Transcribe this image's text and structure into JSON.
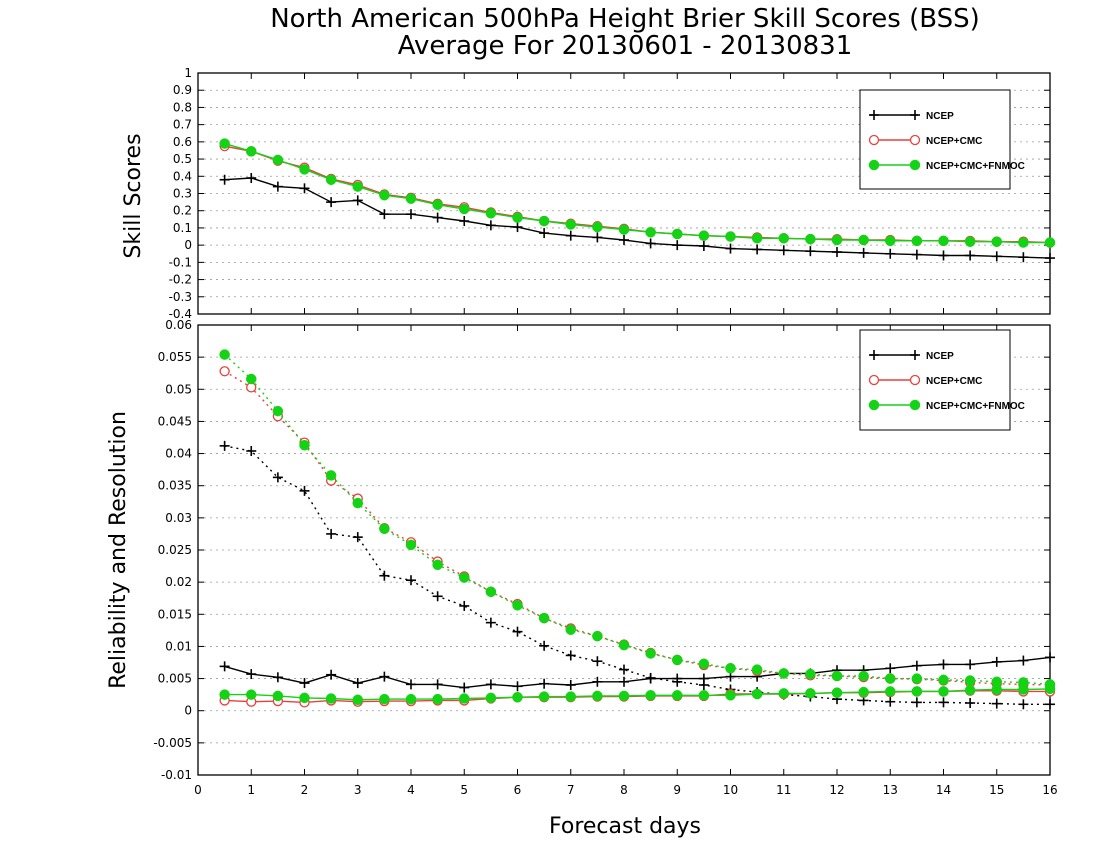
{
  "page": {
    "title_line1": "North American 500hPa Height Brier Skill Scores (BSS)",
    "title_line2": "Average For 20130601 - 20130831"
  },
  "colors": {
    "ncep": "#000000",
    "ncep_cmc": "#e8413c",
    "ncep_cmc_fnmoc": "#14d214",
    "grid": "#9a9a9a"
  },
  "chart_data": [
    {
      "id": "bss",
      "type": "line",
      "ylabel": "Skill Scores",
      "xlabel": "",
      "xlim": [
        0,
        16
      ],
      "ylim": [
        -0.4,
        1
      ],
      "x_ticks": [
        0,
        1,
        2,
        3,
        4,
        5,
        6,
        7,
        8,
        9,
        10,
        11,
        12,
        13,
        14,
        15,
        16
      ],
      "y_ticks": [
        -0.4,
        -0.3,
        -0.2,
        -0.1,
        0,
        0.1,
        0.2,
        0.3,
        0.4,
        0.5,
        0.6,
        0.7,
        0.8,
        0.9,
        1
      ],
      "y_tick_labels": [
        "-0.4",
        "-0.3",
        "-0.2",
        "-0.1",
        "0",
        "0.1",
        "0.2",
        "0.3",
        "0.4",
        "0.5",
        "0.6",
        "0.7",
        "0.8",
        "0.9",
        "1"
      ],
      "grid": true,
      "legend_position": "top-right",
      "x": [
        0.5,
        1,
        1.5,
        2,
        2.5,
        3,
        3.5,
        4,
        4.5,
        5,
        5.5,
        6,
        6.5,
        7,
        7.5,
        8,
        8.5,
        9,
        9.5,
        10,
        10.5,
        11,
        11.5,
        12,
        12.5,
        13,
        13.5,
        14,
        14.5,
        15,
        15.5,
        16
      ],
      "series": [
        {
          "name": "NCEP",
          "key": "ncep",
          "marker": "plus",
          "dash": "solid",
          "values": [
            0.38,
            0.39,
            0.34,
            0.33,
            0.25,
            0.26,
            0.18,
            0.18,
            0.16,
            0.14,
            0.115,
            0.105,
            0.07,
            0.055,
            0.045,
            0.03,
            0.01,
            0.0,
            -0.005,
            -0.02,
            -0.025,
            -0.03,
            -0.035,
            -0.04,
            -0.045,
            -0.05,
            -0.055,
            -0.06,
            -0.06,
            -0.065,
            -0.07,
            -0.075
          ]
        },
        {
          "name": "NCEP+CMC",
          "key": "ncep_cmc",
          "marker": "open-circle",
          "dash": "solid",
          "values": [
            0.575,
            0.545,
            0.49,
            0.45,
            0.385,
            0.35,
            0.295,
            0.275,
            0.24,
            0.22,
            0.19,
            0.165,
            0.14,
            0.125,
            0.11,
            0.095,
            0.075,
            0.065,
            0.055,
            0.05,
            0.045,
            0.04,
            0.035,
            0.035,
            0.03,
            0.03,
            0.025,
            0.025,
            0.025,
            0.02,
            0.02,
            0.015
          ]
        },
        {
          "name": "NCEP+CMC+FNMOC",
          "key": "ncep_cmc_fnmoc",
          "marker": "filled-circle",
          "dash": "solid",
          "values": [
            0.59,
            0.545,
            0.495,
            0.44,
            0.38,
            0.34,
            0.29,
            0.27,
            0.235,
            0.21,
            0.185,
            0.16,
            0.14,
            0.12,
            0.105,
            0.09,
            0.075,
            0.065,
            0.055,
            0.05,
            0.04,
            0.04,
            0.035,
            0.03,
            0.03,
            0.025,
            0.025,
            0.025,
            0.02,
            0.02,
            0.015,
            0.015
          ]
        }
      ]
    },
    {
      "id": "relres",
      "type": "line",
      "ylabel": "Reliability and Resolution",
      "xlabel": "Forecast days",
      "xlim": [
        0,
        16
      ],
      "ylim": [
        -0.01,
        0.06
      ],
      "x_ticks": [
        0,
        1,
        2,
        3,
        4,
        5,
        6,
        7,
        8,
        9,
        10,
        11,
        12,
        13,
        14,
        15,
        16
      ],
      "y_ticks": [
        -0.01,
        -0.005,
        0,
        0.005,
        0.01,
        0.015,
        0.02,
        0.025,
        0.03,
        0.035,
        0.04,
        0.045,
        0.05,
        0.055,
        0.06
      ],
      "y_tick_labels": [
        "-0.01",
        "-0.005",
        "0",
        "0.005",
        "0.01",
        "0.015",
        "0.02",
        "0.025",
        "0.03",
        "0.035",
        "0.04",
        "0.045",
        "0.05",
        "0.055",
        "0.06"
      ],
      "grid": true,
      "legend_position": "top-right",
      "x": [
        0.5,
        1,
        1.5,
        2,
        2.5,
        3,
        3.5,
        4,
        4.5,
        5,
        5.5,
        6,
        6.5,
        7,
        7.5,
        8,
        8.5,
        9,
        9.5,
        10,
        10.5,
        11,
        11.5,
        12,
        12.5,
        13,
        13.5,
        14,
        14.5,
        15,
        15.5,
        16
      ],
      "series": [
        {
          "name": "NCEP",
          "key": "ncep",
          "marker": "plus",
          "dash": "dotted",
          "values": [
            0.0412,
            0.0404,
            0.0363,
            0.0342,
            0.0275,
            0.027,
            0.021,
            0.0203,
            0.0178,
            0.0163,
            0.0137,
            0.0123,
            0.0101,
            0.0086,
            0.0077,
            0.0064,
            0.0051,
            0.0045,
            0.004,
            0.0033,
            0.0029,
            0.0025,
            0.0022,
            0.0018,
            0.0016,
            0.0014,
            0.0013,
            0.0013,
            0.0012,
            0.0011,
            0.001,
            0.001
          ]
        },
        {
          "name": "NCEP+CMC",
          "key": "ncep_cmc",
          "marker": "open-circle",
          "dash": "dotted",
          "values": [
            0.0528,
            0.0503,
            0.0458,
            0.0417,
            0.0358,
            0.033,
            0.0284,
            0.0262,
            0.0232,
            0.0209,
            0.0185,
            0.0166,
            0.0144,
            0.0128,
            0.0116,
            0.0103,
            0.009,
            0.0079,
            0.0071,
            0.0066,
            0.0062,
            0.0058,
            0.0055,
            0.0054,
            0.0052,
            0.005,
            0.0049,
            0.0047,
            0.0044,
            0.0042,
            0.0041,
            0.004
          ]
        },
        {
          "name": "NCEP+CMC+FNMOC",
          "key": "ncep_cmc_fnmoc",
          "marker": "filled-circle",
          "dash": "dotted",
          "values": [
            0.0554,
            0.0516,
            0.0466,
            0.0413,
            0.0366,
            0.0323,
            0.0283,
            0.0258,
            0.0227,
            0.0207,
            0.0185,
            0.0164,
            0.0144,
            0.0126,
            0.0116,
            0.0102,
            0.0089,
            0.0079,
            0.0073,
            0.0066,
            0.0064,
            0.0058,
            0.0057,
            0.0054,
            0.0054,
            0.005,
            0.005,
            0.0048,
            0.0047,
            0.0045,
            0.0044,
            0.0041
          ]
        },
        {
          "name": "NCEP",
          "key": "ncep",
          "marker": "plus",
          "dash": "solid",
          "values": [
            0.0069,
            0.0057,
            0.0052,
            0.0043,
            0.0056,
            0.0043,
            0.0053,
            0.0041,
            0.0041,
            0.0036,
            0.0041,
            0.0038,
            0.0042,
            0.004,
            0.0045,
            0.0045,
            0.005,
            0.005,
            0.005,
            0.0053,
            0.0053,
            0.0058,
            0.0058,
            0.0063,
            0.0063,
            0.0066,
            0.007,
            0.0072,
            0.0072,
            0.0076,
            0.0078,
            0.0083
          ]
        },
        {
          "name": "NCEP+CMC",
          "key": "ncep_cmc",
          "marker": "open-circle",
          "dash": "solid",
          "values": [
            0.0016,
            0.0014,
            0.0015,
            0.0013,
            0.0016,
            0.0014,
            0.0015,
            0.0015,
            0.0016,
            0.0016,
            0.0019,
            0.0021,
            0.0021,
            0.0021,
            0.0022,
            0.0022,
            0.0023,
            0.0023,
            0.0023,
            0.0026,
            0.0026,
            0.0026,
            0.0027,
            0.0028,
            0.0028,
            0.0029,
            0.003,
            0.003,
            0.0031,
            0.0031,
            0.003,
            0.003
          ]
        },
        {
          "name": "NCEP+CMC+FNMOC",
          "key": "ncep_cmc_fnmoc",
          "marker": "filled-circle",
          "dash": "solid",
          "values": [
            0.0025,
            0.0025,
            0.0023,
            0.002,
            0.0019,
            0.0017,
            0.0018,
            0.0018,
            0.0018,
            0.0019,
            0.002,
            0.0021,
            0.0022,
            0.0022,
            0.0023,
            0.0023,
            0.0024,
            0.0024,
            0.0024,
            0.0024,
            0.0026,
            0.0027,
            0.0027,
            0.0028,
            0.0029,
            0.003,
            0.003,
            0.003,
            0.0032,
            0.0033,
            0.0033,
            0.0034
          ]
        }
      ]
    }
  ],
  "legend": {
    "entries": [
      {
        "label": "NCEP",
        "key": "ncep",
        "marker": "plus"
      },
      {
        "label": "NCEP+CMC",
        "key": "ncep_cmc",
        "marker": "open-circle"
      },
      {
        "label": "NCEP+CMC+FNMOC",
        "key": "ncep_cmc_fnmoc",
        "marker": "filled-circle"
      }
    ]
  }
}
